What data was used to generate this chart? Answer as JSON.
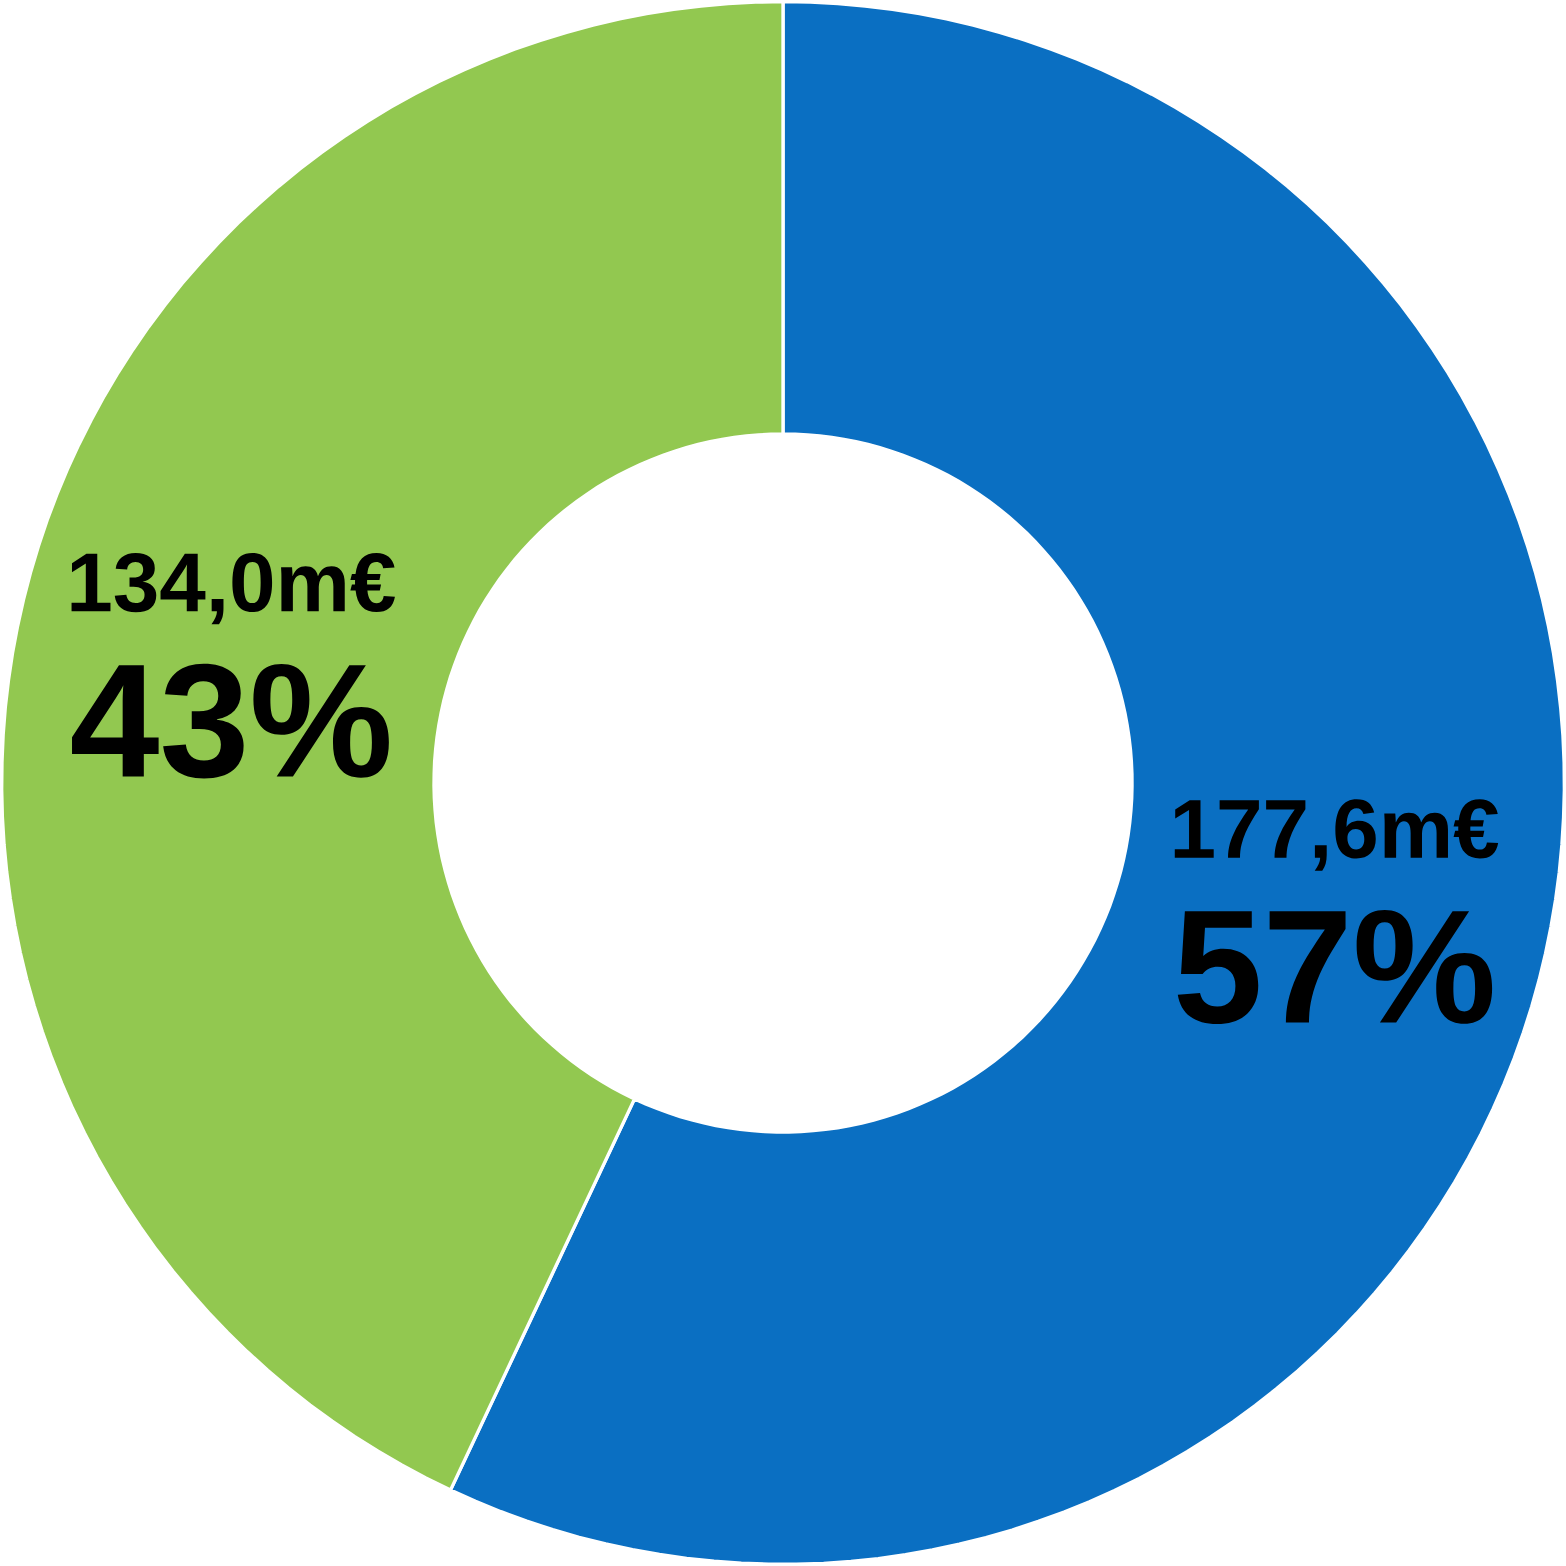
{
  "chart_data": {
    "type": "donut",
    "categories": [
      null,
      null
    ],
    "values": [
      177.6,
      134.0
    ],
    "colors": [
      "#0a6fc2",
      "#92c850"
    ],
    "value_labels": [
      "177,6m€",
      "134,0m€"
    ],
    "annotations": [
      "57%",
      "43%"
    ]
  }
}
